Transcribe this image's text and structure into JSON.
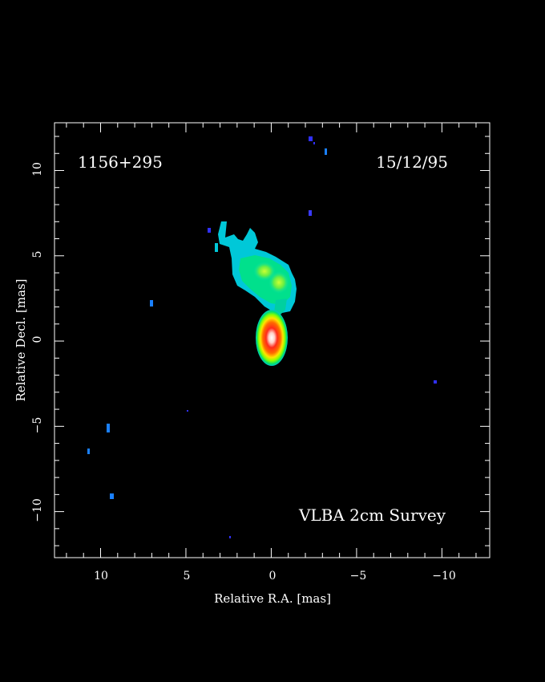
{
  "image": {
    "source_name": "1156+295",
    "epoch": "15/12/95",
    "survey": "VLBA 2cm Survey",
    "colormap": [
      "#1414ff",
      "#00c8ff",
      "#00e0a0",
      "#7cff00",
      "#ffff00",
      "#ff6000",
      "#ff0000",
      "#ffffff"
    ],
    "background": "#000000"
  },
  "axes": {
    "xlabel": "Relative R.A. [mas]",
    "ylabel": "Relative Decl. [mas]",
    "x_range": [
      12.7,
      -12.8
    ],
    "y_range": [
      -12.7,
      12.8
    ],
    "x_ticks": [
      {
        "value": 10,
        "label": "10"
      },
      {
        "value": 5,
        "label": "5"
      },
      {
        "value": 0,
        "label": "0"
      },
      {
        "value": -5,
        "label": "−5"
      },
      {
        "value": -10,
        "label": "−10"
      }
    ],
    "y_ticks": [
      {
        "value": 10,
        "label": "10"
      },
      {
        "value": 5,
        "label": "5"
      },
      {
        "value": 0,
        "label": "0"
      },
      {
        "value": -5,
        "label": "−5"
      },
      {
        "value": -10,
        "label": "−10"
      }
    ]
  }
}
